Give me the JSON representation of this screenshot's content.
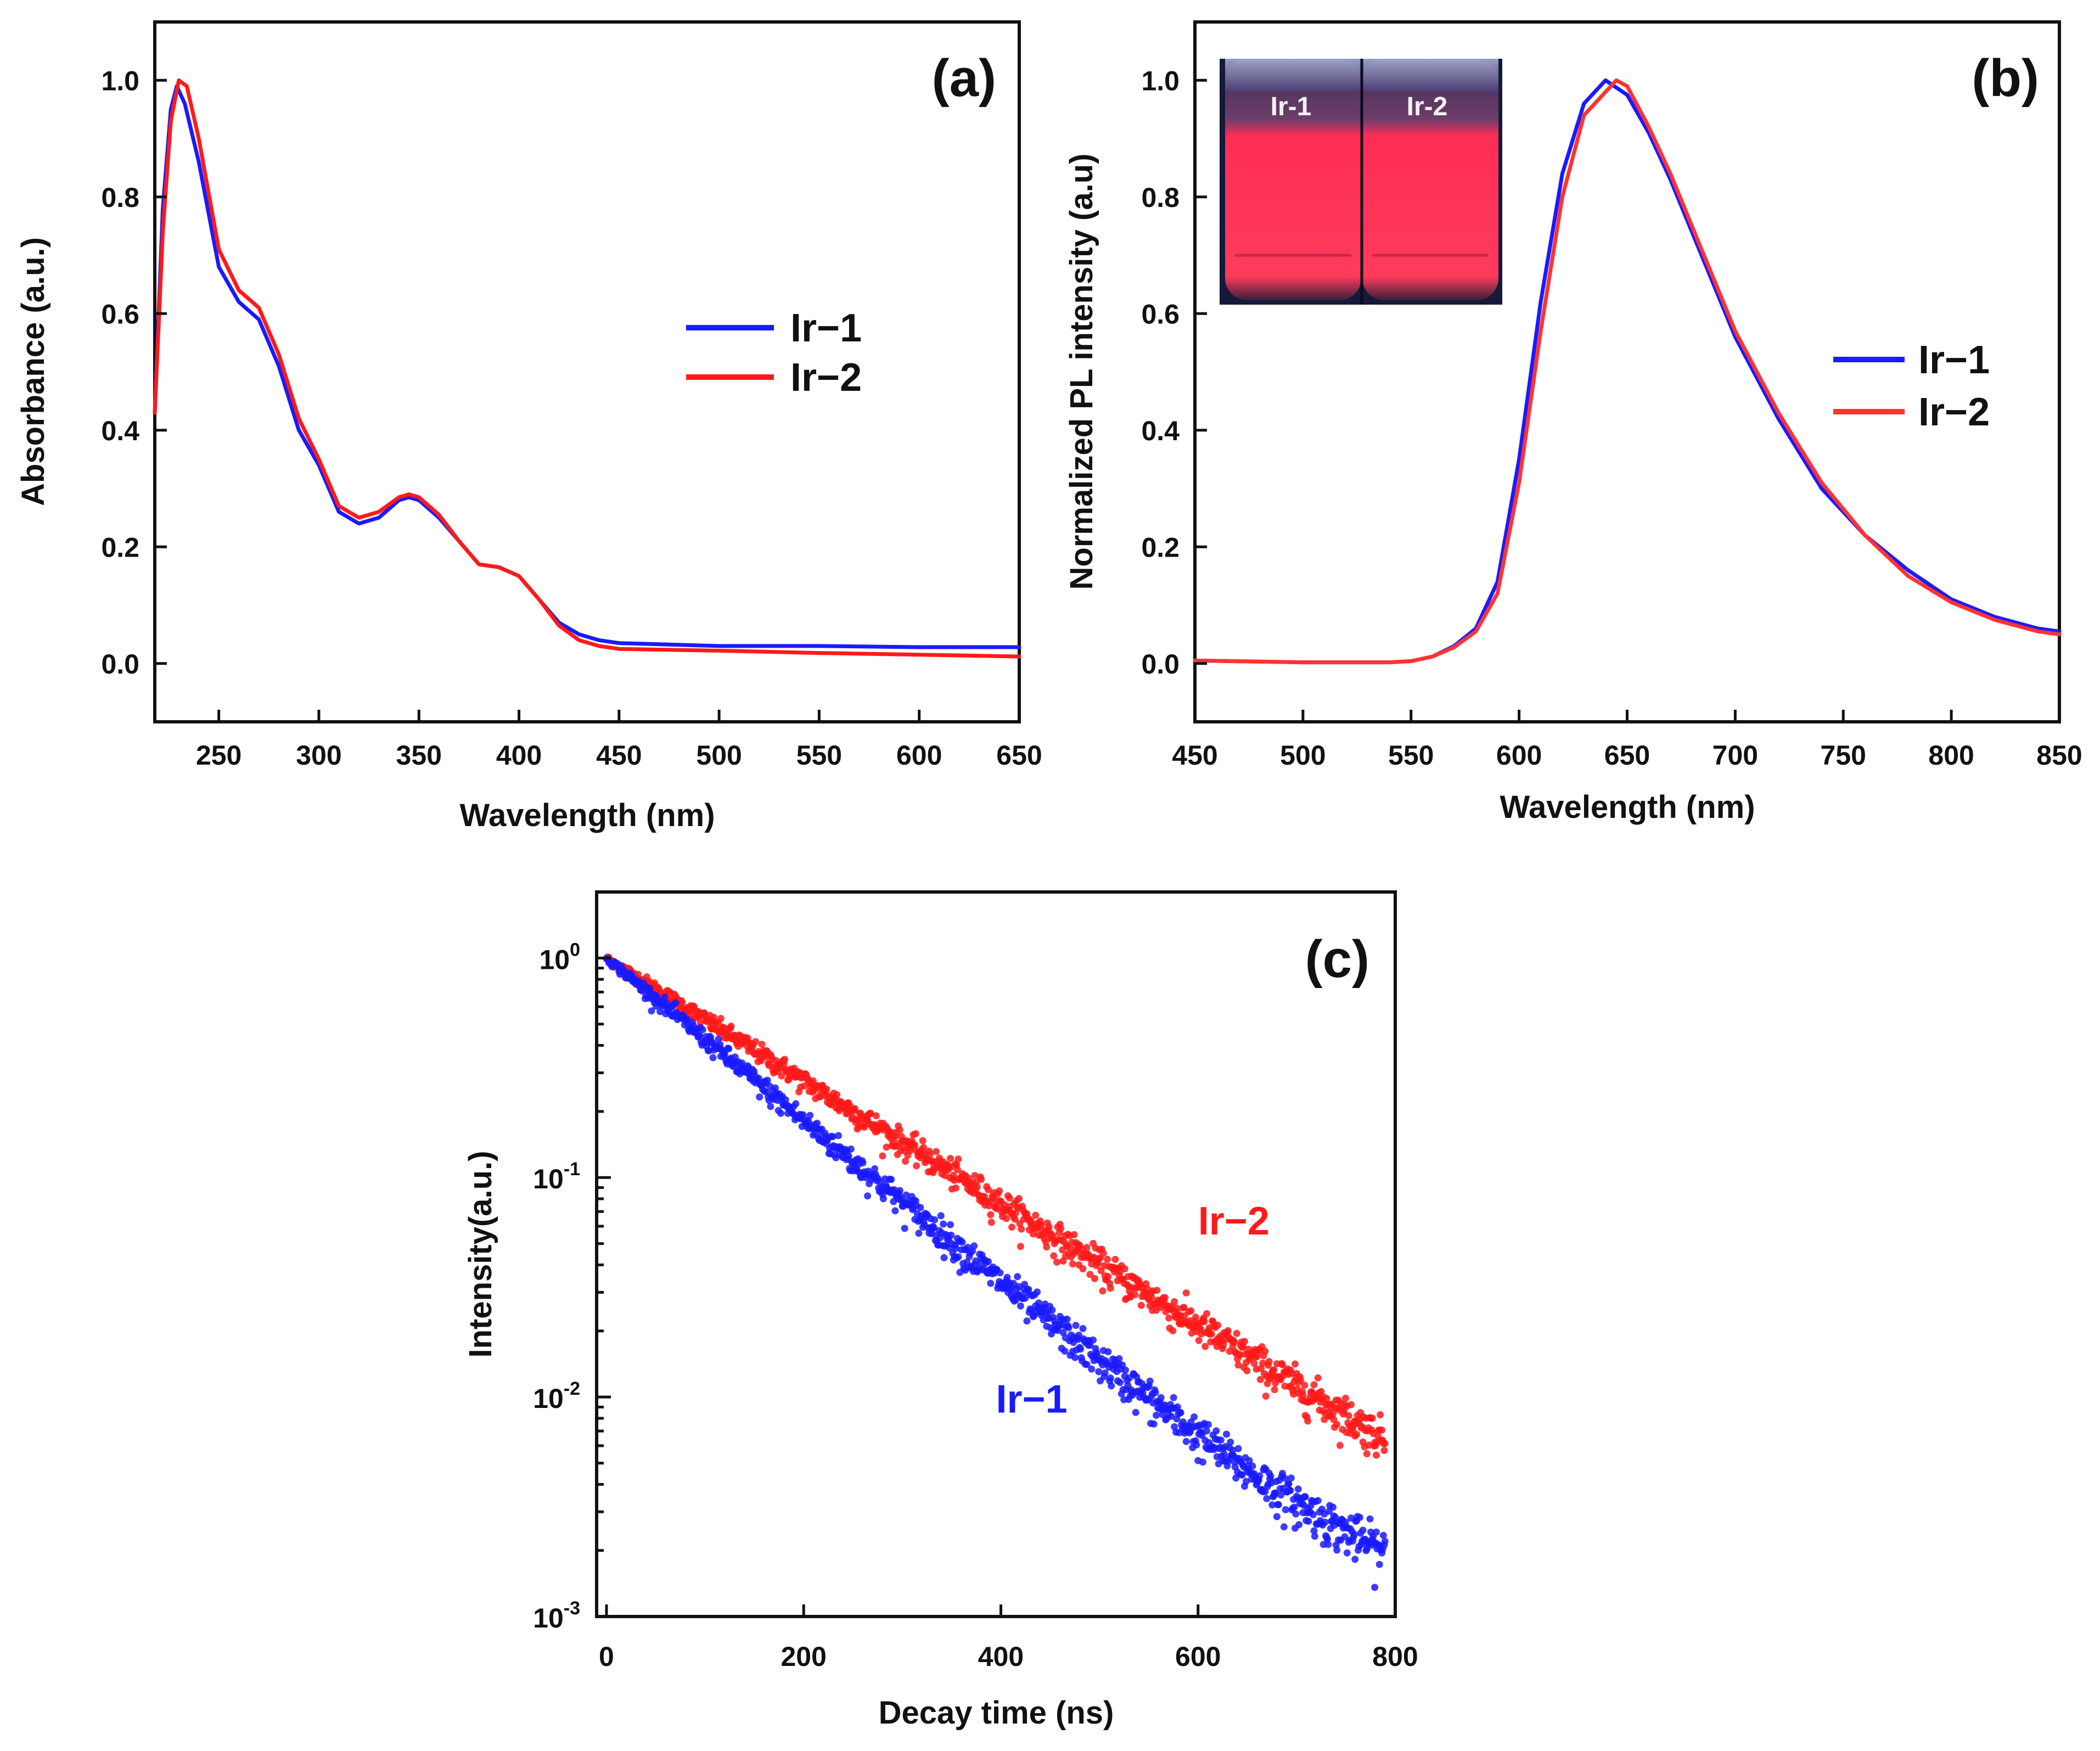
{
  "chart_data": [
    {
      "id": "a",
      "type": "line",
      "panel_label": "(a)",
      "xlabel": "Wavelength (nm)",
      "ylabel": "Absorbance (a.u.)",
      "xlim": [
        218,
        650
      ],
      "ylim": [
        -0.1,
        1.1
      ],
      "xticks": [
        250,
        300,
        350,
        400,
        450,
        500,
        550,
        600,
        650
      ],
      "xtick_labels": [
        "250",
        "300",
        "350",
        "400",
        "450",
        "500",
        "550",
        "600",
        "650"
      ],
      "yticks": [
        0.0,
        0.2,
        0.4,
        0.6,
        0.8,
        1.0
      ],
      "ytick_labels": [
        "0.0",
        "0.2",
        "0.4",
        "0.6",
        "0.8",
        "1.0"
      ],
      "legend": "upper-right",
      "grid": false,
      "series": [
        {
          "name": "Ir−1",
          "color": "#1a1aff",
          "x": [
            218,
            222,
            226,
            229,
            233,
            240,
            250,
            260,
            270,
            280,
            290,
            300,
            310,
            320,
            330,
            340,
            345,
            350,
            360,
            370,
            380,
            390,
            400,
            410,
            420,
            430,
            440,
            450,
            500,
            550,
            600,
            650
          ],
          "y": [
            0.43,
            0.78,
            0.95,
            0.99,
            0.96,
            0.86,
            0.68,
            0.62,
            0.59,
            0.51,
            0.4,
            0.34,
            0.26,
            0.24,
            0.25,
            0.28,
            0.285,
            0.28,
            0.25,
            0.21,
            0.17,
            0.165,
            0.15,
            0.11,
            0.07,
            0.05,
            0.04,
            0.035,
            0.03,
            0.03,
            0.028,
            0.028
          ]
        },
        {
          "name": "Ir−2",
          "color": "#ff1a1a",
          "x": [
            218,
            222,
            226,
            230,
            234,
            240,
            250,
            260,
            270,
            280,
            290,
            300,
            310,
            320,
            330,
            340,
            345,
            350,
            360,
            370,
            380,
            390,
            400,
            410,
            420,
            430,
            440,
            450,
            500,
            550,
            600,
            650
          ],
          "y": [
            0.43,
            0.74,
            0.93,
            1.0,
            0.99,
            0.9,
            0.71,
            0.64,
            0.61,
            0.53,
            0.42,
            0.35,
            0.27,
            0.25,
            0.26,
            0.285,
            0.29,
            0.285,
            0.255,
            0.21,
            0.17,
            0.165,
            0.15,
            0.11,
            0.065,
            0.04,
            0.03,
            0.025,
            0.022,
            0.018,
            0.015,
            0.012
          ]
        }
      ]
    },
    {
      "id": "b",
      "type": "line",
      "panel_label": "(b)",
      "xlabel": "Wavelength (nm)",
      "ylabel": "Normalized PL intensity (a.u)",
      "xlim": [
        450,
        850
      ],
      "ylim": [
        -0.1,
        1.1
      ],
      "xticks": [
        450,
        500,
        550,
        600,
        650,
        700,
        750,
        800,
        850
      ],
      "xtick_labels": [
        "450",
        "500",
        "550",
        "600",
        "650",
        "700",
        "750",
        "800",
        "850"
      ],
      "yticks": [
        0.0,
        0.2,
        0.4,
        0.6,
        0.8,
        1.0
      ],
      "ytick_labels": [
        "0.0",
        "0.2",
        "0.4",
        "0.6",
        "0.8",
        "1.0"
      ],
      "legend": "right",
      "grid": false,
      "inset": {
        "description_labels": [
          "Ir-1",
          "Ir-2"
        ],
        "glow_color": "#ff2b4f"
      },
      "series": [
        {
          "name": "Ir−1",
          "color": "#1a1aff",
          "x": [
            450,
            500,
            540,
            550,
            560,
            570,
            580,
            590,
            600,
            610,
            620,
            630,
            640,
            650,
            660,
            670,
            680,
            700,
            720,
            740,
            760,
            780,
            800,
            820,
            840,
            850
          ],
          "y": [
            0.005,
            0.002,
            0.002,
            0.004,
            0.012,
            0.03,
            0.06,
            0.14,
            0.35,
            0.62,
            0.84,
            0.96,
            1.0,
            0.975,
            0.91,
            0.83,
            0.74,
            0.56,
            0.42,
            0.3,
            0.22,
            0.16,
            0.11,
            0.08,
            0.06,
            0.055
          ]
        },
        {
          "name": "Ir−2",
          "color": "#ff3333",
          "x": [
            450,
            500,
            540,
            550,
            560,
            570,
            580,
            590,
            600,
            610,
            620,
            630,
            645,
            650,
            660,
            670,
            680,
            700,
            720,
            740,
            760,
            780,
            800,
            820,
            840,
            850
          ],
          "y": [
            0.005,
            0.002,
            0.002,
            0.004,
            0.012,
            0.028,
            0.055,
            0.12,
            0.31,
            0.57,
            0.8,
            0.94,
            1.0,
            0.99,
            0.92,
            0.84,
            0.75,
            0.57,
            0.43,
            0.31,
            0.22,
            0.15,
            0.105,
            0.075,
            0.055,
            0.05
          ]
        }
      ]
    },
    {
      "id": "c",
      "type": "scatter",
      "panel_label": "(c)",
      "xlabel": "Decay time (ns)",
      "ylabel": "Intensity(a.u.)",
      "yscale": "log",
      "xlim": [
        -10,
        800
      ],
      "ylim": [
        0.001,
        2.0
      ],
      "xticks": [
        0,
        200,
        400,
        600,
        800
      ],
      "xtick_labels": [
        "0",
        "200",
        "400",
        "600",
        "800"
      ],
      "yticks": [
        0.001,
        0.01,
        0.1,
        1
      ],
      "ytick_labels": [
        {
          "base": "10",
          "exp": "-3"
        },
        {
          "base": "10",
          "exp": "-2"
        },
        {
          "base": "10",
          "exp": "-1"
        },
        {
          "base": "10",
          "exp": "0"
        }
      ],
      "grid": false,
      "annotations": [
        {
          "text": "Ir−2",
          "x": 600,
          "y": 0.055,
          "color": "#ff1a1a"
        },
        {
          "text": "Ir−1",
          "x": 395,
          "y": 0.0085,
          "color": "#1a1aff"
        }
      ],
      "series": [
        {
          "name": "Ir−2",
          "color": "#ff1a1a",
          "model": "exponential",
          "tau_ns": 155,
          "baseline": 0.0003,
          "x_range": [
            0,
            790
          ],
          "values_sample": [
            [
              0,
              1.0
            ],
            [
              200,
              0.275
            ],
            [
              400,
              0.076
            ],
            [
              600,
              0.021
            ],
            [
              790,
              0.006
            ]
          ]
        },
        {
          "name": "Ir−1",
          "color": "#1a1aff",
          "model": "exponential",
          "tau_ns": 117,
          "baseline": 0.0008,
          "x_range": [
            0,
            790
          ],
          "values_sample": [
            [
              0,
              1.0
            ],
            [
              200,
              0.18
            ],
            [
              400,
              0.033
            ],
            [
              600,
              0.0066
            ],
            [
              790,
              0.0019
            ]
          ]
        }
      ]
    }
  ]
}
